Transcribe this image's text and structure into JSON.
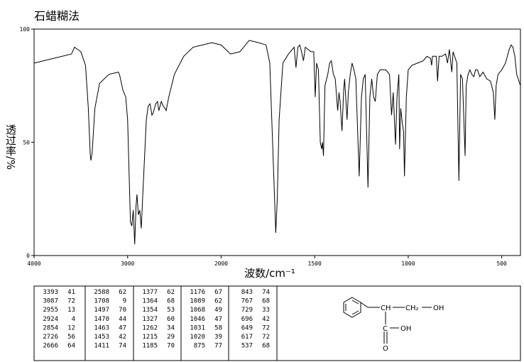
{
  "chart_data": {
    "type": "line",
    "title": "石蜡糊法",
    "x_label": "波数/cm⁻¹",
    "y_label": "透过率/%",
    "xlim": [
      4000,
      400
    ],
    "xticks": [
      4000,
      3000,
      2000,
      1500,
      1000,
      500
    ],
    "ylim": [
      0,
      100
    ],
    "yticks": [
      0,
      50,
      100
    ],
    "color": "#000000",
    "x": [
      4000,
      3800,
      3600,
      3568,
      3500,
      3450,
      3420,
      3400,
      3393,
      3380,
      3350,
      3300,
      3200,
      3100,
      3087,
      3050,
      3020,
      3000,
      2980,
      2970,
      2955,
      2940,
      2924,
      2910,
      2900,
      2885,
      2870,
      2854,
      2840,
      2800,
      2780,
      2760,
      2740,
      2726,
      2700,
      2680,
      2666,
      2640,
      2620,
      2600,
      2588,
      2560,
      2500,
      2400,
      2300,
      2200,
      2100,
      2000,
      1950,
      1900,
      1850,
      1800,
      1760,
      1740,
      1725,
      1708,
      1700,
      1690,
      1670,
      1640,
      1610,
      1600,
      1590,
      1580,
      1570,
      1560,
      1550,
      1520,
      1505,
      1497,
      1490,
      1480,
      1470,
      1465,
      1463,
      1458,
      1453,
      1445,
      1430,
      1420,
      1411,
      1400,
      1390,
      1377,
      1370,
      1364,
      1354,
      1345,
      1340,
      1327,
      1320,
      1310,
      1300,
      1290,
      1280,
      1262,
      1250,
      1240,
      1230,
      1215,
      1205,
      1195,
      1185,
      1176,
      1165,
      1150,
      1120,
      1100,
      1089,
      1080,
      1068,
      1060,
      1050,
      1046,
      1040,
      1031,
      1025,
      1020,
      1010,
      1000,
      980,
      950,
      920,
      900,
      880,
      875,
      870,
      850,
      843,
      835,
      820,
      800,
      790,
      780,
      767,
      760,
      740,
      729,
      720,
      710,
      696,
      690,
      680,
      670,
      660,
      649,
      640,
      630,
      617,
      600,
      580,
      560,
      545,
      537,
      530,
      520,
      500,
      480,
      460,
      450,
      440,
      430,
      420,
      400
    ],
    "values": [
      85,
      87,
      89,
      92,
      90,
      84,
      65,
      45,
      42,
      45,
      65,
      76,
      80,
      81,
      80,
      73,
      70,
      60,
      30,
      15,
      13,
      20,
      5,
      22,
      27,
      18,
      20,
      12,
      25,
      60,
      66,
      67,
      62,
      63,
      67,
      68,
      64,
      68,
      66,
      65,
      64,
      70,
      80,
      88,
      92,
      93,
      94,
      93,
      89,
      90,
      95,
      94,
      93,
      85,
      50,
      10,
      25,
      60,
      85,
      89,
      92,
      83,
      92,
      93,
      90,
      86,
      92,
      90,
      90,
      70,
      85,
      82,
      50,
      48,
      47,
      50,
      44,
      75,
      80,
      85,
      86,
      80,
      78,
      64,
      72,
      68,
      55,
      73,
      78,
      60,
      72,
      80,
      85,
      82,
      78,
      35,
      70,
      78,
      80,
      30,
      70,
      78,
      70,
      68,
      80,
      82,
      82,
      80,
      62,
      72,
      49,
      70,
      80,
      47,
      65,
      58,
      55,
      35,
      70,
      82,
      84,
      85,
      86,
      88,
      87,
      84,
      88,
      88,
      77,
      88,
      88,
      89,
      85,
      91,
      81,
      90,
      85,
      33,
      80,
      78,
      44,
      75,
      80,
      82,
      80,
      79,
      82,
      82,
      79,
      81,
      78,
      77,
      72,
      60,
      75,
      80,
      82,
      85,
      91,
      93,
      92,
      88,
      80,
      75
    ]
  },
  "peak_table": {
    "columns": [
      [
        [
          3393,
          41
        ],
        [
          3087,
          72
        ],
        [
          2955,
          13
        ],
        [
          2924,
          4
        ],
        [
          2854,
          12
        ],
        [
          2726,
          56
        ],
        [
          2666,
          64
        ]
      ],
      [
        [
          2588,
          62
        ],
        [
          1708,
          9
        ],
        [
          1497,
          70
        ],
        [
          1470,
          44
        ],
        [
          1463,
          47
        ],
        [
          1453,
          42
        ],
        [
          1411,
          74
        ]
      ],
      [
        [
          1377,
          62
        ],
        [
          1364,
          68
        ],
        [
          1354,
          53
        ],
        [
          1327,
          60
        ],
        [
          1262,
          34
        ],
        [
          1215,
          29
        ],
        [
          1185,
          70
        ]
      ],
      [
        [
          1176,
          67
        ],
        [
          1089,
          62
        ],
        [
          1068,
          49
        ],
        [
          1046,
          47
        ],
        [
          1031,
          58
        ],
        [
          1020,
          39
        ],
        [
          875,
          77
        ]
      ],
      [
        [
          843,
          74
        ],
        [
          767,
          68
        ],
        [
          729,
          33
        ],
        [
          696,
          42
        ],
        [
          649,
          72
        ],
        [
          617,
          72
        ],
        [
          537,
          68
        ]
      ]
    ]
  },
  "structure": {
    "labels": [
      "CH",
      "CH₂",
      "OH",
      "C",
      "OH",
      "O"
    ]
  }
}
